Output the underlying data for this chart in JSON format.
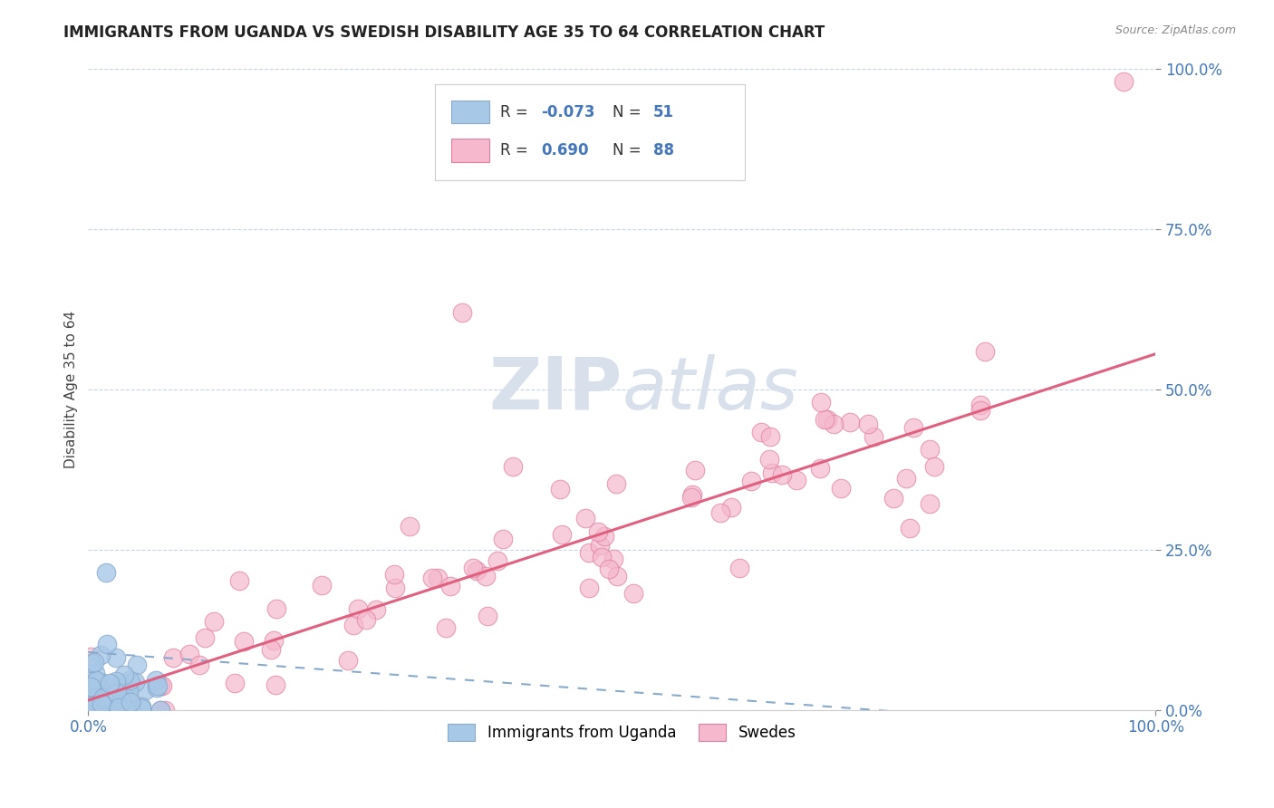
{
  "title": "IMMIGRANTS FROM UGANDA VS SWEDISH DISABILITY AGE 35 TO 64 CORRELATION CHART",
  "source": "Source: ZipAtlas.com",
  "ylabel": "Disability Age 35 to 64",
  "color_blue": "#a8c8e8",
  "color_pink": "#f5b8cc",
  "edge_blue": "#88aacc",
  "edge_pink": "#e080a0",
  "line_blue": "#88aacc",
  "line_pink": "#e06080",
  "tick_color": "#4477bb",
  "background_color": "#ffffff",
  "grid_color": "#c8d4e0",
  "watermark_color": "#d8e0ec",
  "label1": "Immigrants from Uganda",
  "label2": "Swedes",
  "legend_box_color": "#f0f4f8",
  "legend_border_color": "#cccccc"
}
